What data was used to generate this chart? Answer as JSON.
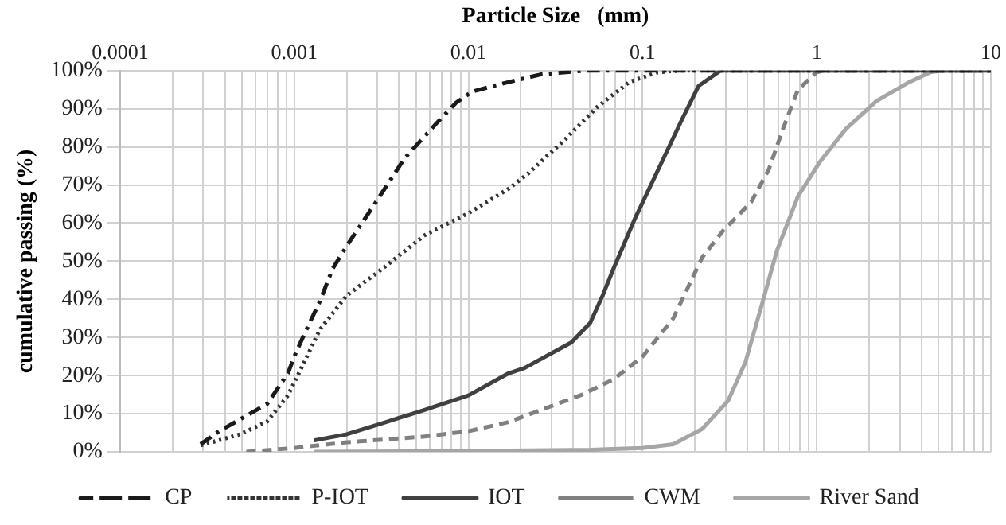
{
  "chart_data": {
    "type": "line",
    "xlabel": "Particle Size   (mm)",
    "ylabel": "cumulative passing (%)",
    "log": "x",
    "xlim": [
      0.0001,
      10
    ],
    "ylim": [
      0,
      100
    ],
    "xticks": [
      {
        "value": 0.0001,
        "label": "0.0001"
      },
      {
        "value": 0.0002,
        "label": null
      },
      {
        "value": 0.0003,
        "label": null
      },
      {
        "value": 0.0004,
        "label": null
      },
      {
        "value": 0.0005,
        "label": null
      },
      {
        "value": 0.0006,
        "label": null
      },
      {
        "value": 0.0007,
        "label": null
      },
      {
        "value": 0.0008,
        "label": null
      },
      {
        "value": 0.0009,
        "label": null
      },
      {
        "value": 0.001,
        "label": "0.001"
      },
      {
        "value": 0.002,
        "label": null
      },
      {
        "value": 0.003,
        "label": null
      },
      {
        "value": 0.004,
        "label": null
      },
      {
        "value": 0.005,
        "label": null
      },
      {
        "value": 0.006,
        "label": null
      },
      {
        "value": 0.007,
        "label": null
      },
      {
        "value": 0.008,
        "label": null
      },
      {
        "value": 0.009,
        "label": null
      },
      {
        "value": 0.01,
        "label": "0.01"
      },
      {
        "value": 0.02,
        "label": null
      },
      {
        "value": 0.03,
        "label": null
      },
      {
        "value": 0.04,
        "label": null
      },
      {
        "value": 0.05,
        "label": null
      },
      {
        "value": 0.06,
        "label": null
      },
      {
        "value": 0.07,
        "label": null
      },
      {
        "value": 0.08,
        "label": null
      },
      {
        "value": 0.09,
        "label": null
      },
      {
        "value": 0.1,
        "label": "0.1"
      },
      {
        "value": 0.2,
        "label": null
      },
      {
        "value": 0.3,
        "label": null
      },
      {
        "value": 0.4,
        "label": null
      },
      {
        "value": 0.5,
        "label": null
      },
      {
        "value": 0.6,
        "label": null
      },
      {
        "value": 0.7,
        "label": null
      },
      {
        "value": 0.8,
        "label": null
      },
      {
        "value": 0.9,
        "label": null
      },
      {
        "value": 1,
        "label": "1"
      },
      {
        "value": 2,
        "label": null
      },
      {
        "value": 3,
        "label": null
      },
      {
        "value": 4,
        "label": null
      },
      {
        "value": 5,
        "label": null
      },
      {
        "value": 6,
        "label": null
      },
      {
        "value": 7,
        "label": null
      },
      {
        "value": 8,
        "label": null
      },
      {
        "value": 9,
        "label": null
      },
      {
        "value": 10,
        "label": "10"
      }
    ],
    "yticks": [
      {
        "value": 0,
        "label": "0%"
      },
      {
        "value": 10,
        "label": "10%"
      },
      {
        "value": 20,
        "label": "20%"
      },
      {
        "value": 30,
        "label": "30%"
      },
      {
        "value": 40,
        "label": "40%"
      },
      {
        "value": 50,
        "label": "50%"
      },
      {
        "value": 60,
        "label": "60%"
      },
      {
        "value": 70,
        "label": "70%"
      },
      {
        "value": 80,
        "label": "80%"
      },
      {
        "value": 90,
        "label": "90%"
      },
      {
        "value": 100,
        "label": "100%"
      }
    ],
    "grid": true,
    "legend": "bottom",
    "marker": "none",
    "series": [
      {
        "name": "CP",
        "color": "#1a1a1a",
        "line_style": "dashdot",
        "x": [
          0.00029,
          0.00037,
          0.00051,
          0.0007,
          0.00092,
          0.001,
          0.00114,
          0.0014,
          0.00166,
          0.002,
          0.0028,
          0.0043,
          0.0065,
          0.0085,
          0.0105,
          0.016,
          0.026,
          0.046,
          10
        ],
        "values": [
          2,
          5.4,
          9,
          12.6,
          20.6,
          25,
          30.8,
          39.4,
          48,
          54,
          64,
          77,
          86,
          91.6,
          94.5,
          96.7,
          99,
          100,
          100
        ]
      },
      {
        "name": "P-IOT",
        "color": "#333333",
        "line_style": "dotted",
        "x": [
          0.00029,
          0.00049,
          0.0007,
          0.00092,
          0.00114,
          0.0014,
          0.002,
          0.0032,
          0.0056,
          0.01,
          0.017,
          0.022,
          0.036,
          0.055,
          0.084,
          0.12,
          0.16,
          10
        ],
        "values": [
          1.7,
          4.6,
          8,
          14.8,
          23.5,
          32,
          41,
          48,
          56.8,
          62.6,
          69,
          73,
          82,
          90.5,
          97,
          99.5,
          100,
          100
        ]
      },
      {
        "name": "IOT",
        "color": "#404040",
        "line_style": "solid",
        "x": [
          0.0013,
          0.002,
          0.0032,
          0.0056,
          0.01,
          0.017,
          0.021,
          0.039,
          0.05,
          0.059,
          0.068,
          0.09,
          0.12,
          0.17,
          0.21,
          0.28,
          10
        ],
        "values": [
          3,
          4.6,
          7.5,
          11,
          14.8,
          20.6,
          22,
          28.7,
          33.8,
          41,
          48,
          61,
          73,
          87.6,
          96,
          100,
          100
        ]
      },
      {
        "name": "CWM",
        "color": "#808080",
        "line_style": "dashed",
        "x": [
          0.00053,
          0.001,
          0.002,
          0.0056,
          0.01,
          0.017,
          0.022,
          0.045,
          0.068,
          0.1,
          0.15,
          0.22,
          0.29,
          0.42,
          0.53,
          0.64,
          0.78,
          1,
          1.1,
          10
        ],
        "values": [
          0,
          1,
          2.5,
          4,
          5.4,
          7.8,
          9.7,
          15,
          19,
          25,
          35,
          51,
          58,
          65.5,
          74,
          84.7,
          95,
          99.6,
          100,
          100
        ]
      },
      {
        "name": "River Sand",
        "color": "#a6a6a6",
        "line_style": "solid",
        "x": [
          0.0013,
          0.01,
          0.05,
          0.1,
          0.15,
          0.22,
          0.31,
          0.39,
          0.48,
          0.59,
          0.78,
          1.04,
          1.47,
          2.2,
          3.4,
          4.5,
          5.2,
          10
        ],
        "values": [
          0,
          0.2,
          0.5,
          1,
          2,
          6,
          13.4,
          23.6,
          38,
          52.7,
          67,
          76,
          84.7,
          92,
          97,
          99.6,
          100,
          100
        ]
      }
    ]
  }
}
